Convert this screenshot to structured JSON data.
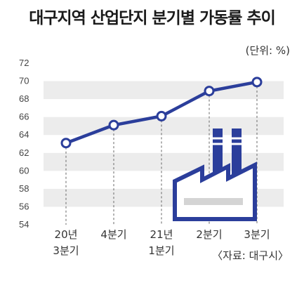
{
  "chart_data": {
    "type": "line",
    "title": "대구지역 산업단지 분기별 가동률 추이",
    "unit_label": "(단위: %)",
    "source": "〈자료: 대구시〉",
    "categories": [
      [
        "20년",
        "3분기"
      ],
      [
        "4분기"
      ],
      [
        "21년",
        "1분기"
      ],
      [
        "2분기"
      ],
      [
        "3분기"
      ]
    ],
    "series": [
      {
        "values": [
          63.1,
          65.1,
          66.1,
          68.9,
          69.9
        ]
      }
    ],
    "ylim": [
      54,
      72
    ],
    "yticks": [
      54,
      56,
      58,
      60,
      62,
      64,
      66,
      68,
      70,
      72
    ],
    "grid": "alternating horizontal bands",
    "line_color": "#2b3e9b",
    "band_color": "#ececec",
    "icon_color": "#2b3e9b",
    "decoration": "factory-icon"
  }
}
